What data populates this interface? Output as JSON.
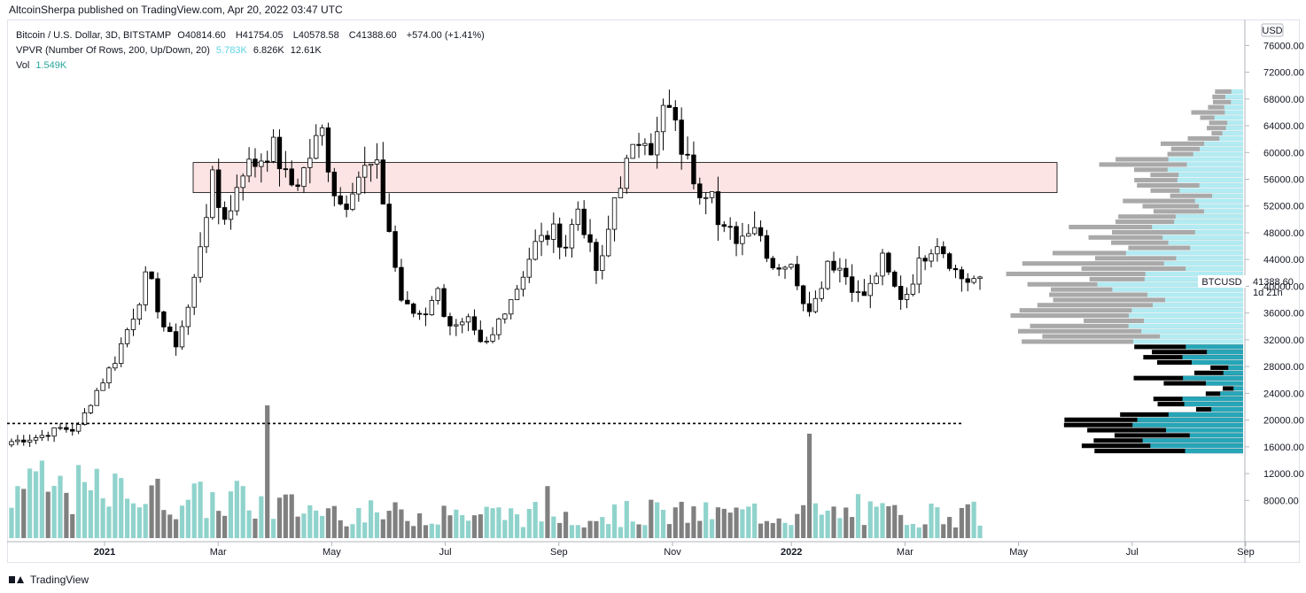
{
  "header": {
    "published": "AltcoinSherpa published on TradingView.com, Apr 20, 2022 03:47 UTC"
  },
  "legend": {
    "symbol": "Bitcoin / U.S. Dollar, 3D, BITSTAMP",
    "o_label": "O",
    "o": "40814.60",
    "h_label": "H",
    "h": "41754.05",
    "l_label": "L",
    "l": "40578.58",
    "c_label": "C",
    "c": "41388.60",
    "change": "+574.00 (+1.41%)",
    "vpvr_label": "VPVR (Number Of Rows, 200, Up/Down, 20)",
    "vpvr_up": "5.783K",
    "vpvr_down": "6.826K",
    "vpvr_total": "12.61K",
    "vol_label": "Vol",
    "vol_value": "1.549K"
  },
  "footer": {
    "brand": "TradingView"
  },
  "chart_data": {
    "type": "candlestick",
    "currency": "USD",
    "ticker": "BTCUSD",
    "last_price": "41388.60",
    "countdown": "1d 21h",
    "colors": {
      "up_candle": "#ffffff",
      "down_candle": "#000000",
      "vol_up": "#8fd3cc",
      "vol_down": "#808080",
      "vp_up": "#b2ebf2",
      "vp_down": "#a9a9a9",
      "zone_fill": "#fde4e4"
    },
    "y_ticks": [
      "76000.00",
      "72000.00",
      "68000.00",
      "64000.00",
      "60000.00",
      "56000.00",
      "52000.00",
      "48000.00",
      "44000.00",
      "40000.00",
      "36000.00",
      "32000.00",
      "28000.00",
      "24000.00",
      "20000.00",
      "16000.00",
      "12000.00",
      "8000.00"
    ],
    "ylim": [
      5000,
      77500
    ],
    "x_ticks": [
      "2021",
      "Mar",
      "May",
      "Jul",
      "Sep",
      "Nov",
      "2022",
      "Mar",
      "May",
      "Jul",
      "Sep"
    ],
    "zone": {
      "low": 54000,
      "high": 58500
    },
    "dotted_level": 19500,
    "price_path": [
      [
        0,
        16800
      ],
      [
        5,
        17500
      ],
      [
        9,
        18800
      ],
      [
        12,
        18500
      ],
      [
        15,
        23500
      ],
      [
        19,
        29000
      ],
      [
        23,
        37000
      ],
      [
        25,
        42000
      ],
      [
        28,
        34000
      ],
      [
        30,
        31000
      ],
      [
        33,
        38000
      ],
      [
        35,
        48000
      ],
      [
        37,
        56000
      ],
      [
        38,
        52000
      ],
      [
        40,
        50000
      ],
      [
        42,
        57500
      ],
      [
        45,
        58500
      ],
      [
        48,
        61000
      ],
      [
        51,
        55000
      ],
      [
        53,
        56000
      ],
      [
        57,
        63500
      ],
      [
        59,
        55000
      ],
      [
        61,
        51500
      ],
      [
        63,
        56000
      ],
      [
        65,
        57500
      ],
      [
        67,
        58000
      ],
      [
        69,
        50000
      ],
      [
        70,
        46000
      ],
      [
        71,
        40000
      ],
      [
        72,
        37000
      ],
      [
        74,
        36000
      ],
      [
        76,
        36000
      ],
      [
        78,
        40000
      ],
      [
        80,
        35000
      ],
      [
        82,
        33500
      ],
      [
        84,
        34500
      ],
      [
        86,
        31000
      ],
      [
        88,
        31500
      ],
      [
        90,
        36000
      ],
      [
        93,
        40000
      ],
      [
        96,
        46000
      ],
      [
        99,
        48000
      ],
      [
        100,
        48000
      ],
      [
        102,
        46000
      ],
      [
        104,
        52000
      ],
      [
        106,
        47000
      ],
      [
        107,
        42000
      ],
      [
        109,
        44000
      ],
      [
        110,
        50000
      ],
      [
        111,
        54000
      ],
      [
        113,
        58000
      ],
      [
        115,
        61000
      ],
      [
        116,
        64000
      ],
      [
        118,
        60000
      ],
      [
        120,
        67000
      ],
      [
        121,
        66000
      ],
      [
        123,
        61000
      ],
      [
        125,
        57000
      ],
      [
        127,
        54000
      ],
      [
        129,
        56000
      ],
      [
        130,
        48000
      ],
      [
        132,
        48000
      ],
      [
        134,
        47000
      ],
      [
        136,
        50000
      ],
      [
        137,
        49000
      ],
      [
        138,
        47000
      ],
      [
        140,
        43000
      ],
      [
        142,
        43500
      ],
      [
        144,
        42000
      ],
      [
        146,
        37000
      ],
      [
        148,
        38000
      ],
      [
        150,
        44000
      ],
      [
        152,
        43000
      ],
      [
        154,
        41000
      ],
      [
        156,
        38000
      ],
      [
        158,
        40000
      ],
      [
        160,
        44000
      ],
      [
        162,
        40000
      ],
      [
        164,
        38000
      ],
      [
        166,
        42000
      ],
      [
        168,
        45000
      ],
      [
        170,
        47000
      ],
      [
        172,
        44500
      ],
      [
        174,
        41500
      ],
      [
        176,
        40800
      ],
      [
        178,
        41400
      ]
    ],
    "volume_profile_bins": 70,
    "volume_profile_seed": 7
  }
}
